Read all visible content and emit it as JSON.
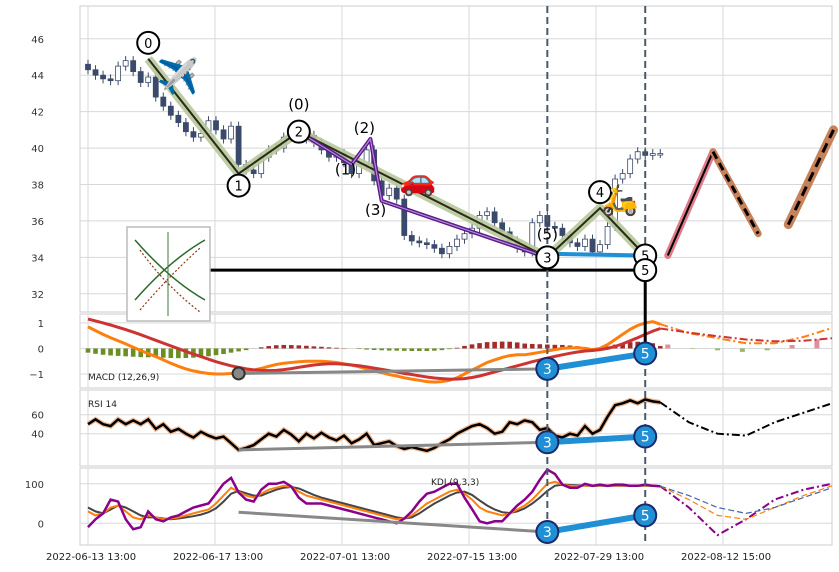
{
  "chart_data": [
    {
      "type": "candlestick",
      "panel": "price",
      "ylim": [
        31,
        47.8
      ],
      "y_ticks": [
        "46",
        "44",
        "42",
        "40",
        "38",
        "36",
        "34",
        "32"
      ],
      "y_tick_values": [
        46,
        44,
        42,
        40,
        38,
        36,
        34,
        32
      ],
      "x_ticks": [
        "2022-06-13 13:00",
        "2022-06-17 13:00",
        "2022-07-01 13:00",
        "2022-07-15 13:00",
        "2022-07-29 13:00",
        "2022-08-12 15:00"
      ],
      "closes": [
        44.3,
        44.0,
        43.8,
        43.7,
        44.5,
        44.8,
        44.2,
        43.6,
        43.9,
        42.8,
        42.3,
        41.8,
        41.4,
        40.9,
        40.6,
        40.8,
        41.5,
        41.0,
        40.5,
        41.2,
        39.1,
        38.8,
        38.6,
        39.5,
        39.9,
        40.0,
        40.6,
        40.9,
        40.5,
        40.7,
        40.3,
        39.9,
        39.5,
        39.7,
        39.2,
        38.6,
        39.1,
        39.9,
        38.2,
        37.4,
        37.8,
        37.2,
        35.2,
        34.9,
        34.8,
        34.7,
        34.5,
        34.2,
        34.6,
        35.0,
        35.3,
        35.6,
        36.3,
        36.5,
        35.9,
        35.4,
        34.9,
        34.5,
        34.3,
        35.9,
        36.3,
        35.7,
        35.6,
        35.2,
        34.8,
        34.6,
        35.0,
        34.3,
        34.7,
        35.7,
        38.3,
        38.6,
        39.4,
        39.8,
        39.6,
        39.7,
        39.7
      ],
      "elliott_waves": [
        {
          "label": "0",
          "x": 8,
          "y": 44.9
        },
        {
          "label": "1",
          "x": 20,
          "y": 38.6
        },
        {
          "label": "2",
          "x": 28,
          "y": 40.9
        },
        {
          "label": "3",
          "x": 61,
          "y": 34.0
        },
        {
          "label": "4",
          "x": 68,
          "y": 36.7
        },
        {
          "label": "5",
          "x": 74,
          "y": 34.1
        }
      ],
      "sub_waves": [
        {
          "label": "(0)",
          "x": 28,
          "y": 40.9
        },
        {
          "label": "(1)",
          "x": 35,
          "y": 39.1
        },
        {
          "label": "(2)",
          "x": 37.5,
          "y": 40.5
        },
        {
          "label": "(3)",
          "x": 39,
          "y": 37.1
        },
        {
          "label": "(5)",
          "x": 61,
          "y": 34.0
        }
      ],
      "support_level": 33.3,
      "forecast": [
        {
          "x": 77,
          "y": 34.1
        },
        {
          "x": 83,
          "y": 39.8
        },
        {
          "x": 89,
          "y": 35.3
        },
        {
          "x": 93,
          "y": 35.8
        },
        {
          "x": 99,
          "y": 41.0
        }
      ],
      "vlines_index": [
        61,
        74
      ]
    },
    {
      "type": "bar+line",
      "panel": "macd",
      "label": "MACD (12,26,9)",
      "ylim": [
        -1.55,
        1.35
      ],
      "y_ticks": [
        "1",
        "0",
        "−1"
      ],
      "y_tick_values": [
        1,
        0,
        -1
      ],
      "macd": [
        0.85,
        0.7,
        0.55,
        0.42,
        0.3,
        0.18,
        0.05,
        -0.08,
        -0.2,
        -0.32,
        -0.45,
        -0.58,
        -0.7,
        -0.8,
        -0.88,
        -0.94,
        -0.98,
        -1.0,
        -1.0,
        -0.98,
        -0.95,
        -0.92,
        -0.85,
        -0.78,
        -0.7,
        -0.63,
        -0.58,
        -0.55,
        -0.52,
        -0.5,
        -0.5,
        -0.5,
        -0.52,
        -0.55,
        -0.6,
        -0.65,
        -0.72,
        -0.8,
        -0.88,
        -0.95,
        -1.02,
        -1.08,
        -1.15,
        -1.2,
        -1.25,
        -1.3,
        -1.32,
        -1.3,
        -1.25,
        -1.15,
        -1.0,
        -0.85,
        -0.7,
        -0.55,
        -0.45,
        -0.35,
        -0.28,
        -0.25,
        -0.25,
        -0.2,
        -0.15,
        -0.1,
        -0.05,
        0.0,
        0.02,
        0.02,
        0.0,
        -0.05,
        0.0,
        0.15,
        0.35,
        0.55,
        0.75,
        0.9,
        1.0,
        1.05,
        0.95
      ],
      "signal": [
        1.15,
        1.08,
        1.0,
        0.92,
        0.83,
        0.74,
        0.64,
        0.54,
        0.43,
        0.32,
        0.21,
        0.1,
        -0.01,
        -0.12,
        -0.22,
        -0.32,
        -0.42,
        -0.52,
        -0.6,
        -0.68,
        -0.74,
        -0.8,
        -0.84,
        -0.86,
        -0.87,
        -0.86,
        -0.83,
        -0.79,
        -0.74,
        -0.69,
        -0.65,
        -0.62,
        -0.6,
        -0.6,
        -0.62,
        -0.65,
        -0.68,
        -0.72,
        -0.77,
        -0.82,
        -0.87,
        -0.92,
        -0.98,
        -1.02,
        -1.07,
        -1.12,
        -1.16,
        -1.18,
        -1.2,
        -1.2,
        -1.18,
        -1.14,
        -1.08,
        -1.0,
        -0.92,
        -0.84,
        -0.76,
        -0.68,
        -0.6,
        -0.52,
        -0.45,
        -0.38,
        -0.31,
        -0.25,
        -0.19,
        -0.14,
        -0.1,
        -0.08,
        -0.05,
        0.0,
        0.08,
        0.18,
        0.3,
        0.42,
        0.55,
        0.68,
        0.78
      ],
      "forecast_macd": [
        0.95,
        0.6,
        0.4,
        0.2,
        0.2,
        0.45,
        0.8
      ],
      "forecast_signal": [
        0.78,
        0.62,
        0.48,
        0.35,
        0.28,
        0.3,
        0.4
      ],
      "divergence": {
        "a_x": 20,
        "a_y": -0.98,
        "b_x": 61,
        "b_y": -0.8,
        "c_x": 74,
        "c_y": -0.2
      }
    },
    {
      "type": "line",
      "panel": "rsi",
      "label": "RSI 14",
      "ylim": [
        6,
        86
      ],
      "y_ticks": [
        "60",
        "40"
      ],
      "y_tick_values": [
        60,
        40
      ],
      "rsi": [
        50,
        55,
        50,
        48,
        55,
        50,
        54,
        50,
        55,
        45,
        50,
        42,
        45,
        40,
        36,
        42,
        38,
        35,
        37,
        30,
        23,
        25,
        28,
        34,
        40,
        37,
        44,
        39,
        32,
        40,
        35,
        41,
        36,
        33,
        38,
        30,
        34,
        40,
        28,
        30,
        32,
        27,
        24,
        26,
        24,
        22,
        25,
        30,
        34,
        40,
        44,
        48,
        50,
        46,
        40,
        42,
        52,
        50,
        54,
        52,
        44,
        46,
        38,
        36,
        40,
        38,
        48,
        40,
        44,
        58,
        70,
        72,
        75,
        72,
        76,
        74,
        73
      ],
      "forecast_rsi": [
        73,
        52,
        40,
        38,
        52,
        62,
        72
      ],
      "divergence": {
        "a_x": 20,
        "a_y": 23,
        "b_x": 61,
        "b_y": 31,
        "c_x": 74,
        "c_y": 37
      }
    },
    {
      "type": "line",
      "panel": "kdj",
      "label": "KDJ (9,3,3)",
      "ylim": [
        -55,
        140
      ],
      "y_ticks": [
        "100",
        "0"
      ],
      "y_tick_values": [
        100,
        0
      ],
      "k": [
        30,
        20,
        25,
        40,
        45,
        30,
        15,
        10,
        20,
        15,
        10,
        12,
        15,
        20,
        25,
        30,
        35,
        50,
        70,
        90,
        80,
        70,
        65,
        75,
        85,
        90,
        95,
        92,
        80,
        70,
        65,
        60,
        55,
        50,
        45,
        40,
        35,
        30,
        25,
        20,
        15,
        10,
        12,
        20,
        35,
        50,
        60,
        70,
        80,
        85,
        75,
        60,
        40,
        30,
        25,
        20,
        25,
        35,
        45,
        60,
        80,
        100,
        105,
        98,
        95,
        94,
        96,
        95,
        96,
        95,
        96,
        96,
        95,
        95,
        96,
        95,
        94
      ],
      "d": [
        40,
        30,
        25,
        35,
        45,
        40,
        30,
        20,
        15,
        15,
        12,
        10,
        12,
        15,
        18,
        22,
        28,
        38,
        55,
        75,
        82,
        76,
        70,
        70,
        78,
        85,
        90,
        92,
        88,
        80,
        72,
        65,
        60,
        55,
        50,
        45,
        40,
        35,
        30,
        25,
        20,
        15,
        12,
        15,
        25,
        38,
        50,
        60,
        70,
        78,
        80,
        72,
        58,
        45,
        35,
        28,
        26,
        30,
        38,
        50,
        65,
        82,
        95,
        98,
        97,
        96,
        95,
        95,
        95,
        95,
        95,
        95,
        95,
        95,
        95,
        95,
        94
      ],
      "j": [
        -10,
        10,
        25,
        60,
        55,
        10,
        -15,
        -10,
        30,
        10,
        5,
        15,
        20,
        30,
        40,
        45,
        50,
        75,
        100,
        115,
        78,
        60,
        55,
        85,
        100,
        100,
        105,
        93,
        65,
        50,
        50,
        50,
        45,
        40,
        35,
        30,
        25,
        20,
        15,
        10,
        5,
        0,
        12,
        30,
        55,
        75,
        80,
        90,
        100,
        100,
        65,
        36,
        5,
        0,
        5,
        5,
        25,
        45,
        60,
        80,
        110,
        136,
        125,
        98,
        90,
        90,
        100,
        95,
        98,
        95,
        98,
        98,
        95,
        95,
        98,
        95,
        94
      ],
      "forecast_j": [
        94,
        40,
        -30,
        10,
        60,
        85,
        100
      ],
      "forecast_k": [
        94,
        60,
        20,
        10,
        40,
        70,
        95
      ],
      "forecast_d": [
        94,
        70,
        40,
        25,
        40,
        65,
        90
      ],
      "divergence": {
        "a_x": 20,
        "a_y": 28,
        "b_x": 61,
        "b_y": -22,
        "c_x": 74,
        "c_y": 20
      }
    }
  ],
  "colors": {
    "up_candle": "#ffffff",
    "down_candle": "#3b4a6b",
    "wave_main": "#2a2a1a",
    "wave_glow": "#b8c89a",
    "sub_wave": "#5a1a8a",
    "blue_line": "#1f8fd6",
    "forecast_pink": "#e07a8a",
    "forecast_brown": "#c8825a",
    "macd_orange": "#ff7f0e",
    "macd_red": "#cc3333",
    "hist_green": "#6b8e23",
    "hist_red": "#a52a2a",
    "kdj_purple": "#8b008b",
    "badge_fill": "#1f8fd6",
    "grid": "#d8d8d8",
    "vline": "#4a5a6a"
  },
  "icons": [
    "airplane-icon",
    "car-icon",
    "scooter-icon"
  ]
}
